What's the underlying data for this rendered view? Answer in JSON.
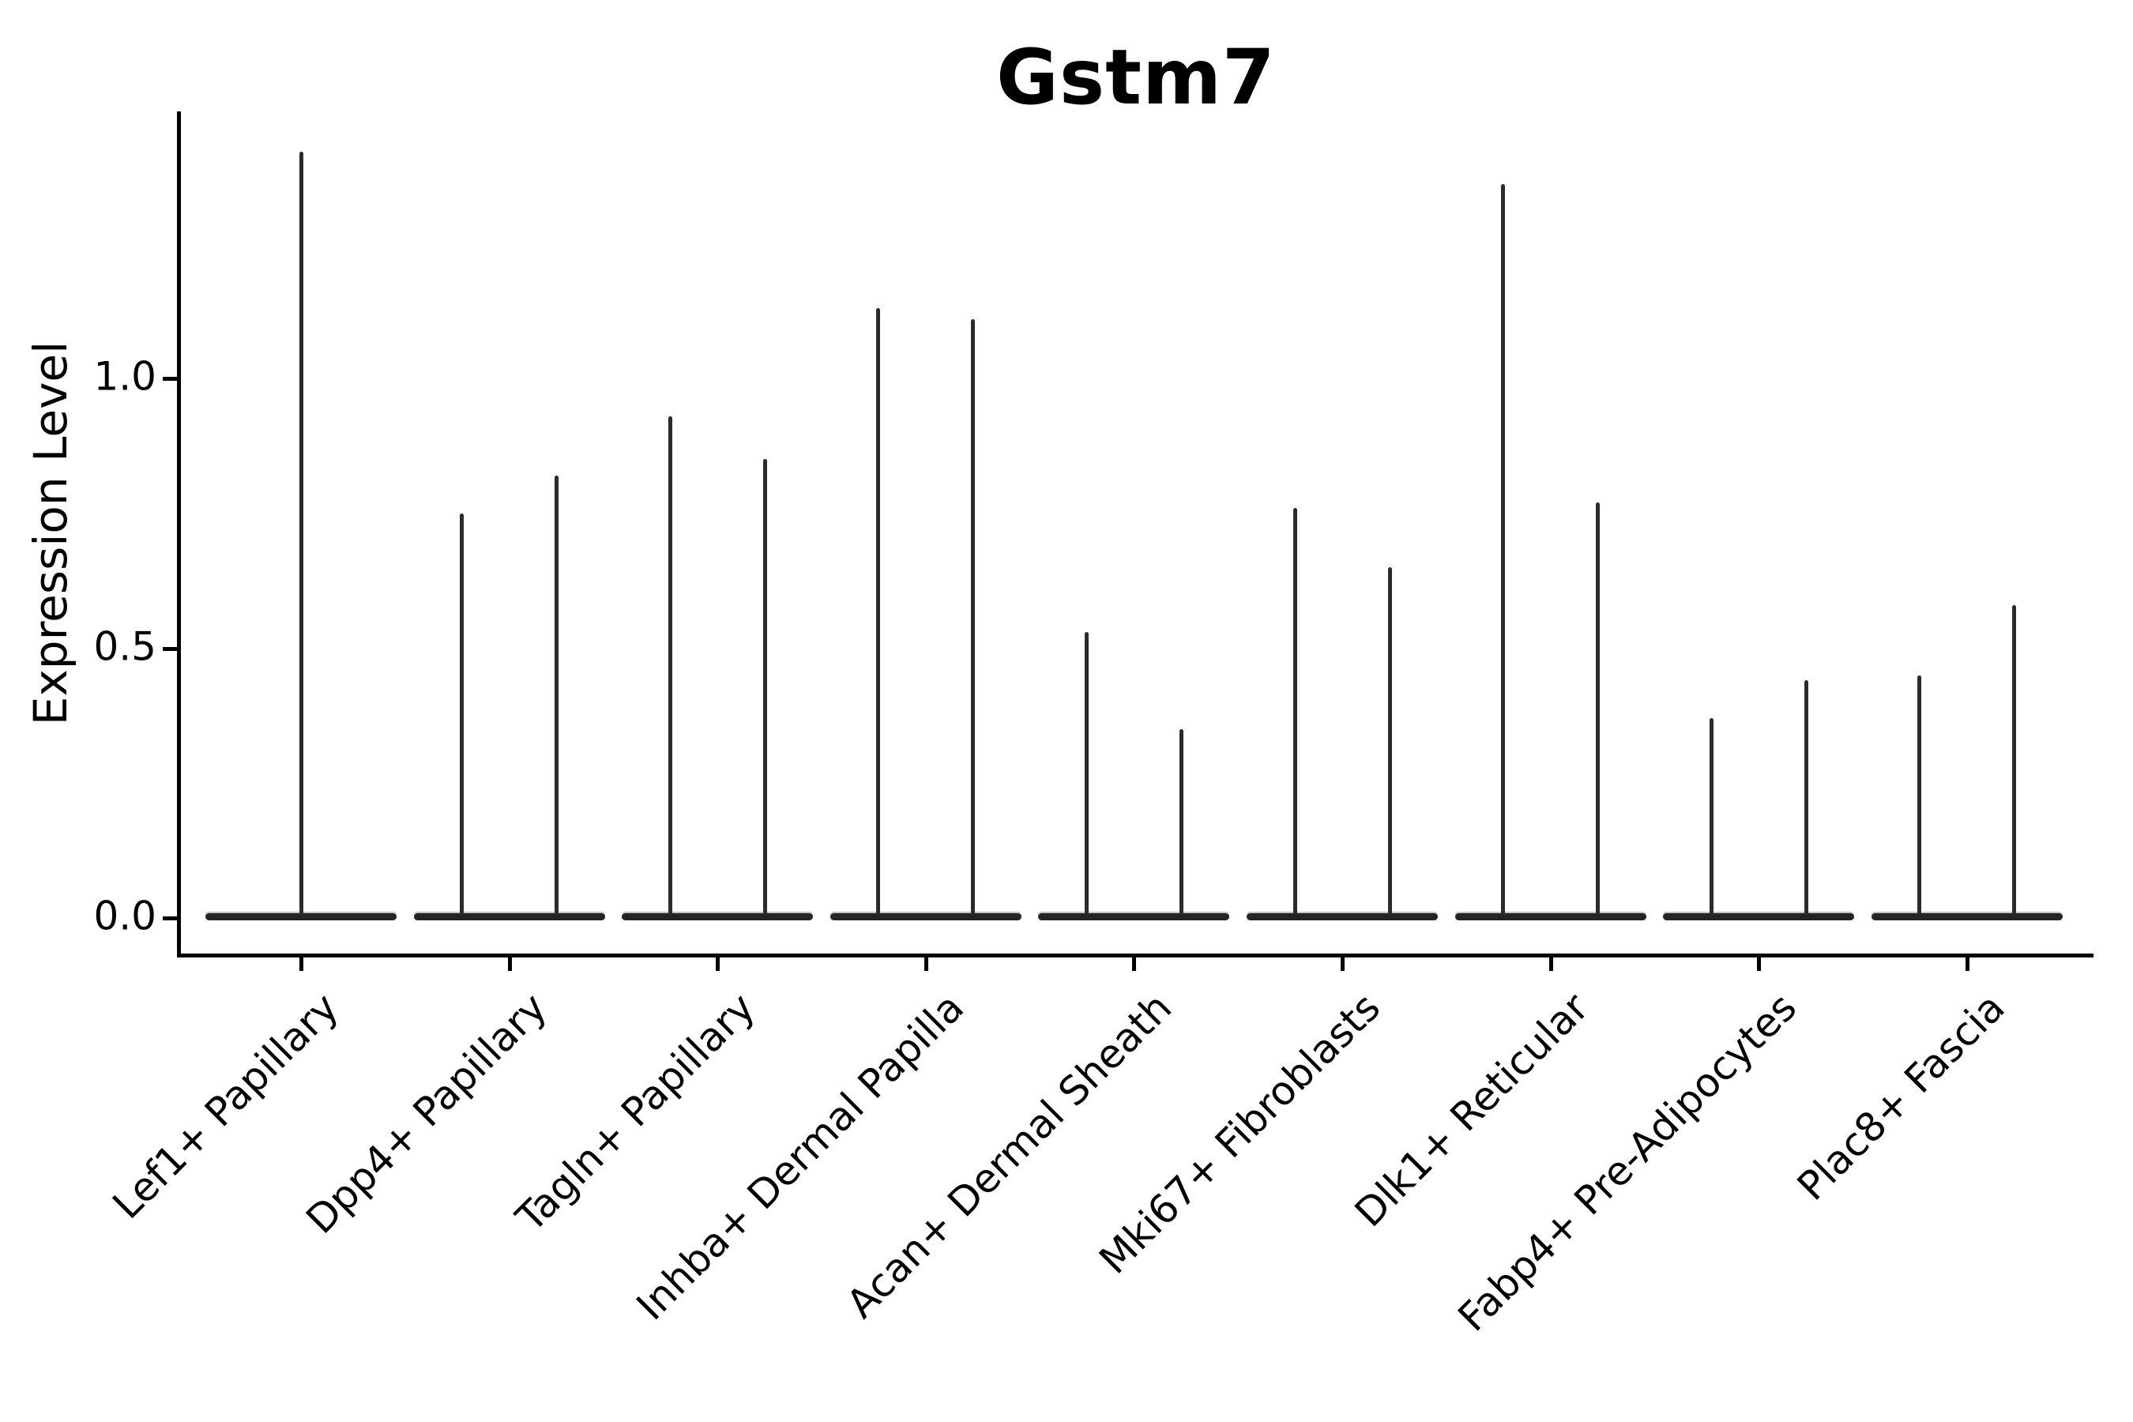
{
  "title": "Gstm7",
  "chart_data": {
    "type": "violin",
    "title": "Gstm7",
    "xlabel": "",
    "ylabel": "Expression Level",
    "grid": false,
    "legend": "none",
    "ylim": [
      -0.07,
      1.5
    ],
    "yticks": [
      {
        "value": 0.0,
        "label": "0.0"
      },
      {
        "value": 0.5,
        "label": "0.5"
      },
      {
        "value": 1.0,
        "label": "1.0"
      }
    ],
    "categories": [
      "Lef1+ Papillary",
      "Dpp4+ Papillary",
      "Tagln+ Papillary",
      "Inhba+ Dermal Papilla",
      "Acan+ Dermal Sheath",
      "Mki67+ Fibroblasts",
      "Dlk1+ Reticular",
      "Fabp4+ Pre-Adipocytes",
      "Plac8+ Fascia"
    ],
    "violin_style": "density concentrated at 0 (wide flat base) with thin spike to maximum expression",
    "series": [
      {
        "category": "Lef1+ Papillary",
        "spike_max_values": [
          1.42
        ]
      },
      {
        "category": "Dpp4+ Papillary",
        "spike_max_values": [
          0.75,
          0.82
        ]
      },
      {
        "category": "Tagln+ Papillary",
        "spike_max_values": [
          0.93,
          0.85
        ]
      },
      {
        "category": "Inhba+ Dermal Papilla",
        "spike_max_values": [
          1.13,
          1.11
        ]
      },
      {
        "category": "Acan+ Dermal Sheath",
        "spike_max_values": [
          0.53,
          0.35
        ]
      },
      {
        "category": "Mki67+ Fibroblasts",
        "spike_max_values": [
          0.76,
          0.65
        ]
      },
      {
        "category": "Dlk1+ Reticular",
        "spike_max_values": [
          1.36,
          0.77
        ]
      },
      {
        "category": "Fabp4+ Pre-Adipocytes",
        "spike_max_values": [
          0.37,
          0.44
        ]
      },
      {
        "category": "Plac8+ Fascia",
        "spike_max_values": [
          0.45,
          0.58
        ]
      }
    ],
    "colors": {
      "violin_line": "#2b2b2b",
      "axis": "#000000",
      "text": "#000000",
      "background": "#ffffff"
    }
  }
}
